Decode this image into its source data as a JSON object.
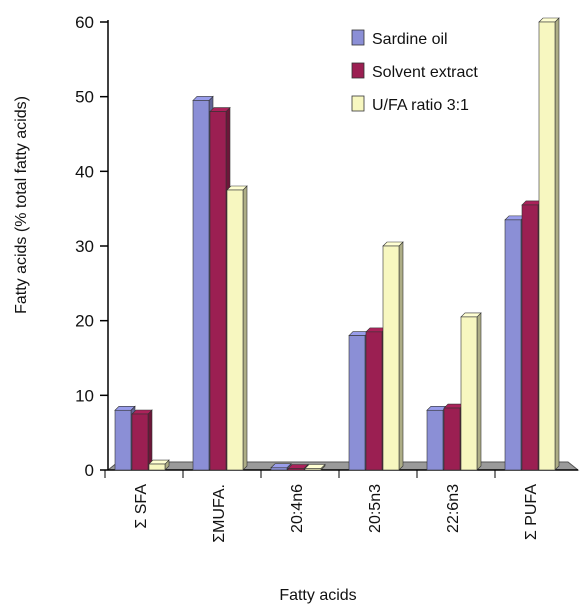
{
  "chart_data": {
    "type": "bar",
    "categories": [
      "Σ SFA",
      "ΣMUFA.",
      "20:4n6",
      "20:5n3",
      "22:6n3",
      "Σ PUFA"
    ],
    "series": [
      {
        "name": "Sardine oil",
        "values": [
          8.0,
          49.5,
          0.3,
          18.0,
          8.0,
          33.5
        ],
        "color": "#8b8fd6"
      },
      {
        "name": "Solvent extract",
        "values": [
          7.5,
          48.0,
          0.2,
          18.5,
          8.3,
          35.5
        ],
        "color": "#9b1f52"
      },
      {
        "name": "U/FA ratio 3:1",
        "values": [
          0.8,
          37.5,
          0.2,
          30.0,
          20.5,
          60.0
        ],
        "color": "#f7f7c0"
      }
    ],
    "xlabel": "Fatty acids",
    "ylabel": "Fatty acids (% total fatty acids)",
    "ylim": [
      0,
      60
    ],
    "yticks": [
      "0",
      "10",
      "20",
      "30",
      "40",
      "50",
      "60"
    ],
    "grid": false,
    "legend_position": "top-right",
    "floor_color": "#9a9a9a"
  }
}
